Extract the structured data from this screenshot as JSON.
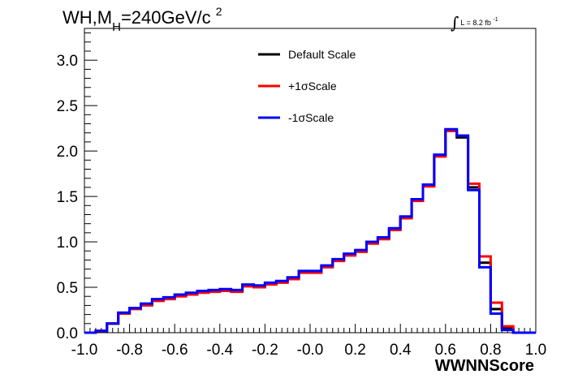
{
  "chart_data": {
    "type": "line",
    "title": {
      "prefix": "WH,M",
      "subscript": "H",
      "main": "=240GeV/c",
      "superscript": "2"
    },
    "luminosity": {
      "integral": "∫",
      "text": "L = 8.2 fb",
      "superscript": "-1"
    },
    "xlabel": "WWNNScore",
    "ylabel": "",
    "xlim": [
      -1.0,
      1.0
    ],
    "ylim": [
      0.0,
      3.35
    ],
    "xticks": [
      "-1.0",
      "-0.8",
      "-0.6",
      "-0.4",
      "-0.2",
      "-0.0",
      "0.2",
      "0.4",
      "0.6",
      "0.8",
      "1.0"
    ],
    "yticks": [
      "0.0",
      "0.5",
      "1.0",
      "1.5",
      "2.0",
      "2.5",
      "3.0"
    ],
    "legend_position": "top-center",
    "bin_edges": [
      -1.0,
      -0.95,
      -0.9,
      -0.85,
      -0.8,
      -0.75,
      -0.7,
      -0.65,
      -0.6,
      -0.55,
      -0.5,
      -0.45,
      -0.4,
      -0.35,
      -0.3,
      -0.25,
      -0.2,
      -0.15,
      -0.1,
      -0.05,
      0.0,
      0.05,
      0.1,
      0.15,
      0.2,
      0.25,
      0.3,
      0.35,
      0.4,
      0.45,
      0.5,
      0.55,
      0.6,
      0.65,
      0.7,
      0.75,
      0.8,
      0.85,
      0.9,
      0.95,
      1.0
    ],
    "series": [
      {
        "name": "Default Scale",
        "color": "#000000",
        "values": [
          0.0,
          0.02,
          0.1,
          0.22,
          0.27,
          0.31,
          0.36,
          0.38,
          0.41,
          0.43,
          0.45,
          0.46,
          0.47,
          0.46,
          0.52,
          0.51,
          0.54,
          0.56,
          0.6,
          0.67,
          0.67,
          0.73,
          0.8,
          0.86,
          0.9,
          0.99,
          1.04,
          1.14,
          1.27,
          1.46,
          1.62,
          1.95,
          2.23,
          2.15,
          1.6,
          0.77,
          0.26,
          0.05,
          0.0,
          0.0
        ]
      },
      {
        "name": "+1σScale",
        "color": "#ff0000",
        "values": [
          0.0,
          0.02,
          0.1,
          0.21,
          0.26,
          0.3,
          0.35,
          0.37,
          0.4,
          0.42,
          0.44,
          0.45,
          0.46,
          0.45,
          0.51,
          0.5,
          0.53,
          0.55,
          0.59,
          0.66,
          0.66,
          0.72,
          0.79,
          0.85,
          0.89,
          0.98,
          1.03,
          1.13,
          1.26,
          1.45,
          1.61,
          1.94,
          2.22,
          2.17,
          1.64,
          0.84,
          0.33,
          0.07,
          0.0,
          0.0
        ]
      },
      {
        "name": "-1σScale",
        "color": "#0000ff",
        "values": [
          0.0,
          0.02,
          0.1,
          0.22,
          0.27,
          0.32,
          0.37,
          0.39,
          0.42,
          0.44,
          0.46,
          0.47,
          0.48,
          0.47,
          0.53,
          0.52,
          0.55,
          0.57,
          0.61,
          0.68,
          0.68,
          0.74,
          0.81,
          0.87,
          0.91,
          1.0,
          1.05,
          1.15,
          1.28,
          1.47,
          1.63,
          1.96,
          2.24,
          2.17,
          1.57,
          0.72,
          0.21,
          0.03,
          0.0,
          0.0
        ]
      }
    ]
  }
}
